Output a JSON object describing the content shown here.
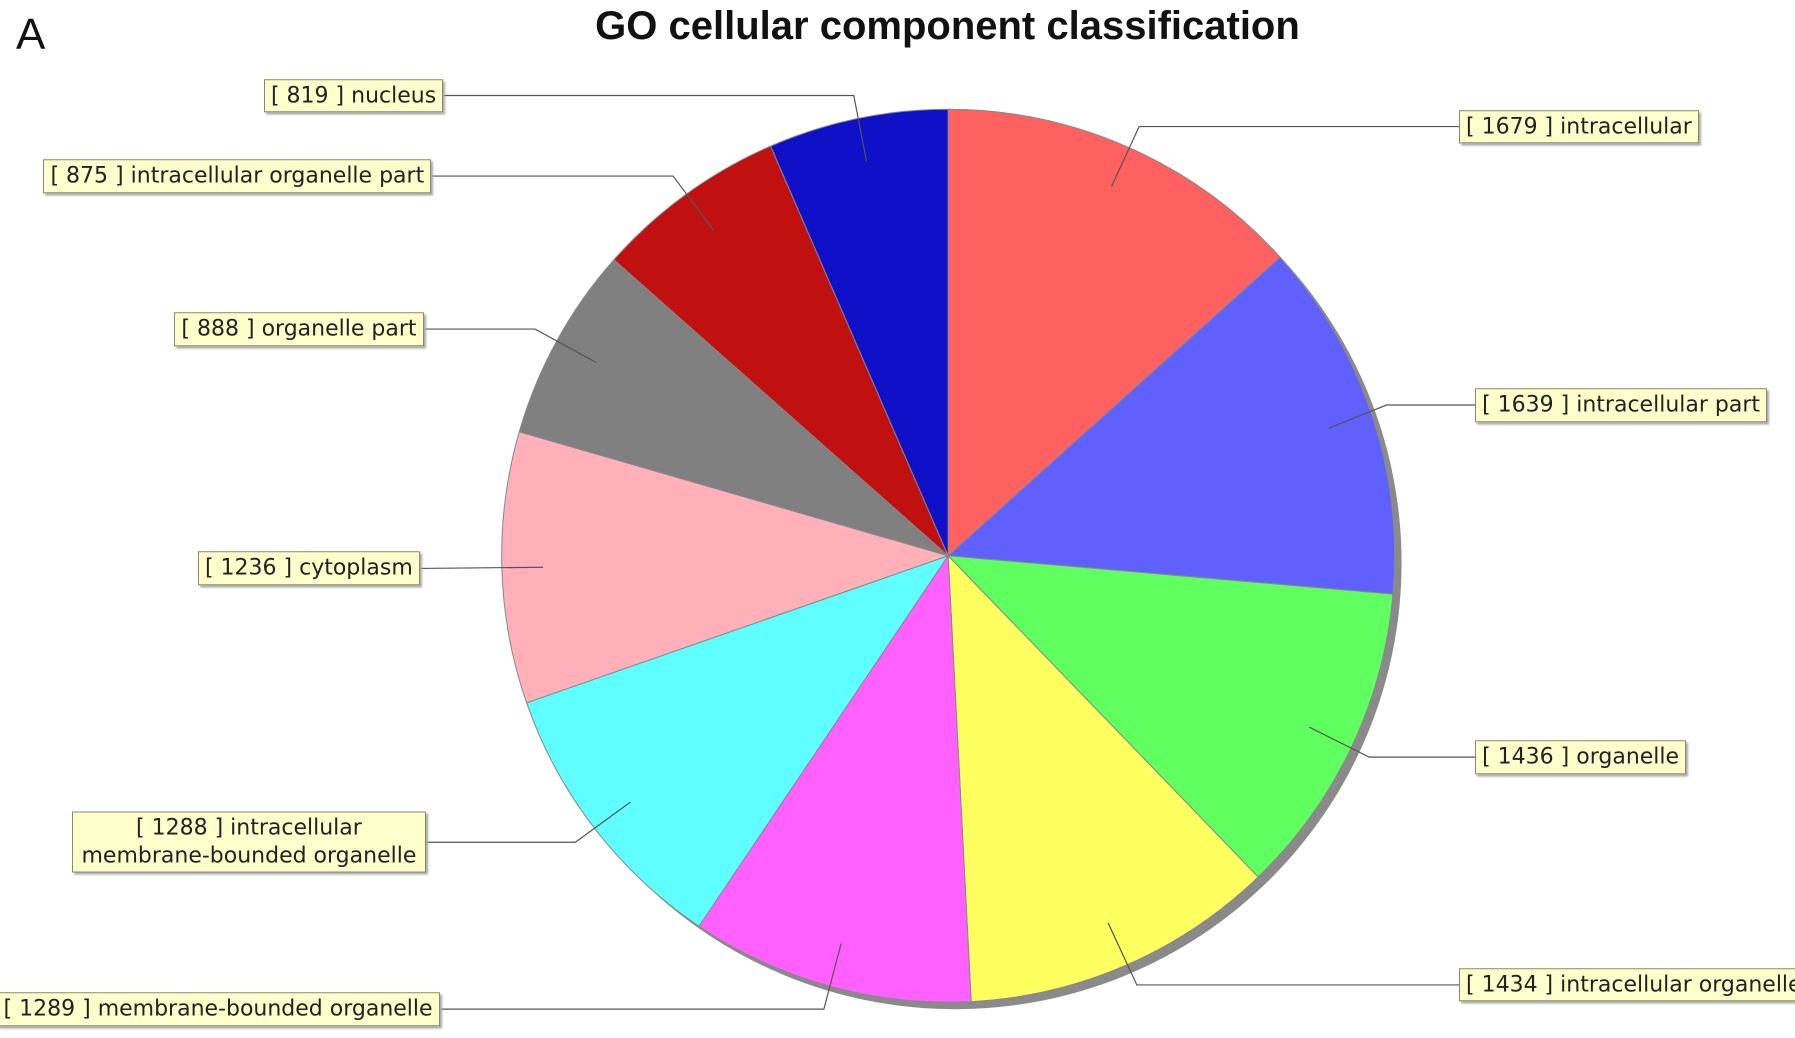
{
  "panel_label": "A",
  "chart_data": {
    "type": "pie",
    "title": "GO cellular component classification",
    "categories": [
      "intracellular",
      "intracellular part",
      "organelle",
      "intracellular organelle",
      "membrane-bounded organelle",
      "intracellular membrane-bounded organelle",
      "cytoplasm",
      "organelle part",
      "intracellular organelle part",
      "nucleus"
    ],
    "values": [
      1679,
      1639,
      1436,
      1434,
      1289,
      1288,
      1236,
      888,
      875,
      819
    ],
    "value_labels": [
      "[ 1679 ]",
      "[ 1639 ]",
      "[ 1436 ]",
      "[ 1434 ]",
      "[ 1289 ]",
      "[ 1288 ]",
      "[ 1236 ]",
      "[ 888 ]",
      "[ 875 ]",
      "[ 819 ]"
    ],
    "colors": [
      "#ff6060",
      "#6060ff",
      "#60ff60",
      "#ffff60",
      "#ff60ff",
      "#60ffff",
      "#ffb0b8",
      "#808080",
      "#c01010",
      "#1010c8"
    ]
  }
}
